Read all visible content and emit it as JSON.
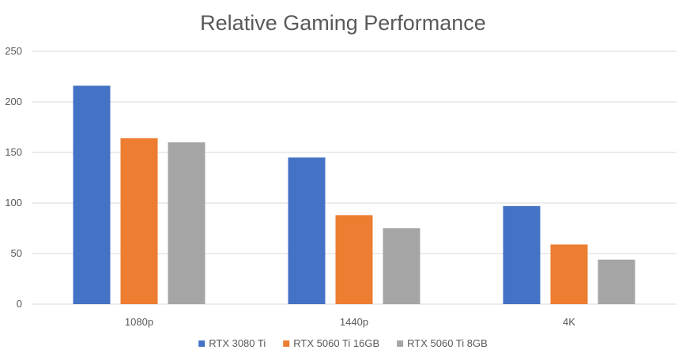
{
  "chart_data": {
    "type": "bar",
    "title": "Relative Gaming  Performance",
    "xlabel": "",
    "ylabel": "",
    "categories": [
      "1080p",
      "1440p",
      "4K"
    ],
    "series": [
      {
        "name": "RTX 3080 Ti",
        "color": "#4472c4",
        "values": [
          216,
          145,
          97
        ]
      },
      {
        "name": "RTX 5060 Ti 16GB",
        "color": "#ed7d31",
        "values": [
          164,
          88,
          59
        ]
      },
      {
        "name": "RTX 5060 Ti 8GB",
        "color": "#a5a5a5",
        "values": [
          160,
          75,
          44
        ]
      }
    ],
    "ylim": [
      0,
      250
    ],
    "yticks": [
      "0",
      "50",
      "100",
      "150",
      "200",
      "250"
    ],
    "grid": true,
    "legend_position": "bottom"
  }
}
